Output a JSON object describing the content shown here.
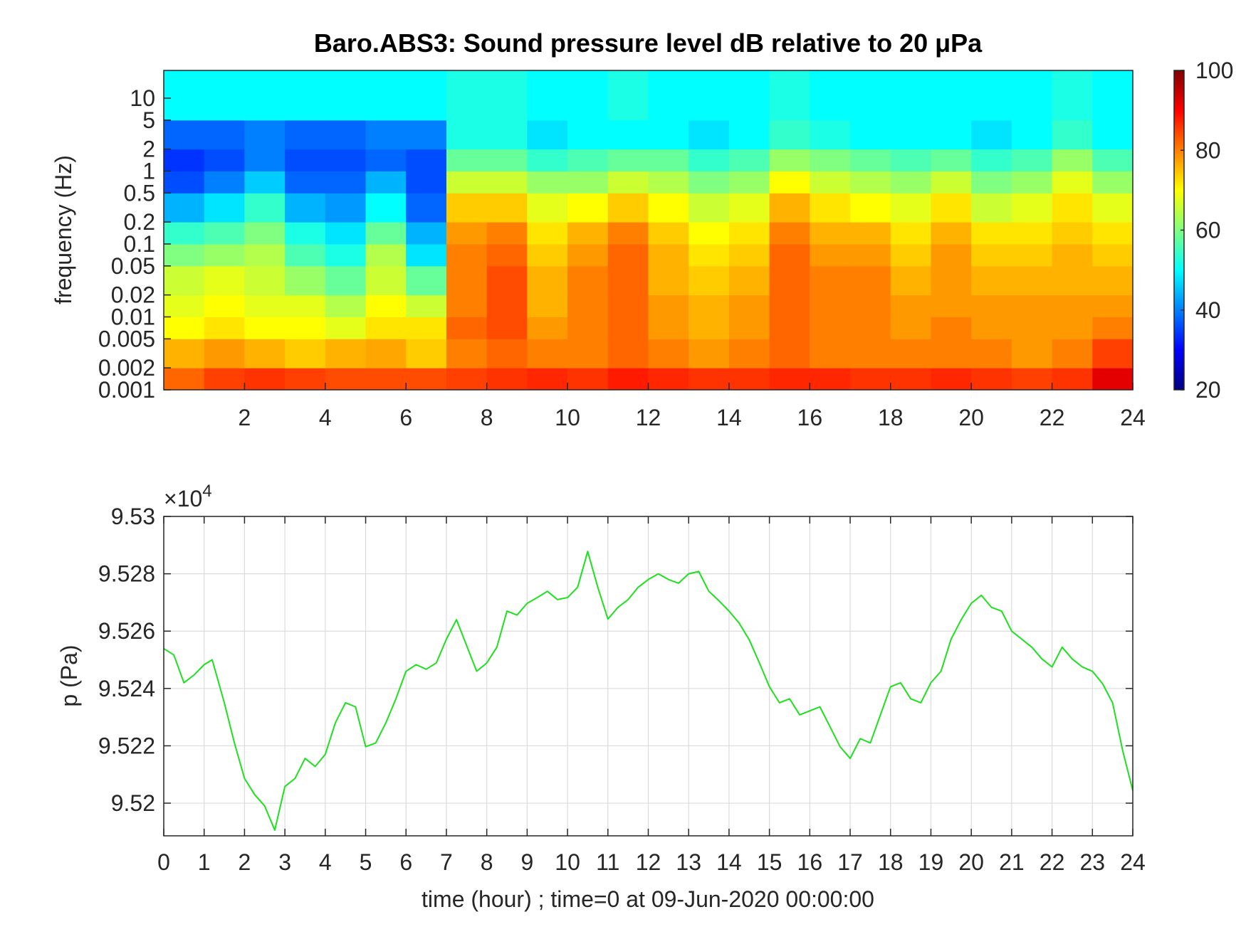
{
  "chart_data": [
    {
      "type": "heatmap",
      "title": "Baro.ABS3: Sound pressure level dB relative to 20 μPa",
      "ylabel": "frequency (Hz)",
      "yscale": "log",
      "xlim": [
        0,
        24
      ],
      "ylim": [
        0.001,
        24
      ],
      "xticks": [
        2,
        4,
        6,
        8,
        10,
        12,
        14,
        16,
        18,
        20,
        22,
        24
      ],
      "yticks": [
        0.001,
        0.002,
        0.005,
        0.01,
        0.02,
        0.05,
        0.1,
        0.2,
        0.5,
        1,
        2,
        5,
        10
      ],
      "x_bins": [
        0,
        1,
        2,
        3,
        4,
        5,
        6,
        7,
        8,
        9,
        10,
        11,
        12,
        13,
        14,
        15,
        16,
        17,
        18,
        19,
        20,
        21,
        22,
        23,
        24
      ],
      "y_bins": [
        0.001,
        0.002,
        0.005,
        0.01,
        0.02,
        0.05,
        0.1,
        0.2,
        0.5,
        1,
        2,
        5,
        24
      ],
      "z": [
        [
          82,
          85,
          86,
          85,
          84,
          84,
          84,
          85,
          86,
          87,
          86,
          88,
          87,
          86,
          86,
          87,
          87,
          86,
          86,
          87,
          86,
          85,
          86,
          92
        ],
        [
          76,
          78,
          76,
          74,
          76,
          77,
          74,
          80,
          82,
          80,
          80,
          82,
          80,
          78,
          80,
          82,
          80,
          80,
          80,
          80,
          80,
          78,
          80,
          85
        ],
        [
          70,
          72,
          70,
          70,
          68,
          72,
          72,
          82,
          84,
          78,
          80,
          82,
          78,
          76,
          78,
          82,
          80,
          80,
          78,
          80,
          78,
          78,
          78,
          80
        ],
        [
          68,
          70,
          68,
          68,
          64,
          70,
          66,
          80,
          84,
          76,
          80,
          82,
          78,
          76,
          78,
          82,
          80,
          80,
          78,
          78,
          78,
          78,
          78,
          78
        ],
        [
          66,
          68,
          66,
          62,
          58,
          66,
          58,
          80,
          84,
          76,
          80,
          82,
          76,
          74,
          76,
          82,
          80,
          80,
          76,
          78,
          76,
          76,
          76,
          76
        ],
        [
          60,
          62,
          64,
          56,
          52,
          64,
          48,
          80,
          82,
          74,
          78,
          82,
          76,
          72,
          74,
          82,
          78,
          78,
          74,
          78,
          74,
          74,
          76,
          74
        ],
        [
          54,
          56,
          60,
          52,
          48,
          58,
          44,
          78,
          80,
          72,
          76,
          80,
          74,
          70,
          72,
          80,
          76,
          76,
          72,
          76,
          72,
          72,
          74,
          72
        ],
        [
          44,
          48,
          54,
          44,
          42,
          50,
          38,
          74,
          74,
          68,
          70,
          74,
          70,
          66,
          68,
          76,
          72,
          70,
          68,
          72,
          66,
          68,
          72,
          68
        ],
        [
          36,
          40,
          46,
          38,
          38,
          44,
          36,
          66,
          66,
          62,
          62,
          66,
          64,
          60,
          62,
          70,
          66,
          64,
          62,
          66,
          60,
          62,
          68,
          62
        ],
        [
          34,
          36,
          40,
          36,
          36,
          38,
          36,
          58,
          58,
          54,
          56,
          58,
          58,
          54,
          56,
          62,
          60,
          58,
          56,
          58,
          54,
          56,
          62,
          56
        ],
        [
          38,
          38,
          40,
          38,
          38,
          40,
          40,
          52,
          52,
          48,
          50,
          50,
          50,
          48,
          50,
          54,
          52,
          50,
          50,
          50,
          48,
          50,
          54,
          50
        ],
        [
          50,
          50,
          50,
          50,
          50,
          50,
          50,
          52,
          52,
          50,
          50,
          52,
          50,
          50,
          50,
          52,
          50,
          50,
          50,
          50,
          50,
          50,
          52,
          50
        ]
      ],
      "colorbar": {
        "colormap": "jet",
        "clim": [
          20,
          100
        ],
        "ticks": [
          20,
          40,
          60,
          80,
          100
        ]
      }
    },
    {
      "type": "line",
      "xlabel": "time (hour) ; time=0 at 09-Jun-2020 00:00:00",
      "ylabel": "p (Pa)",
      "y_offset_label": "×10",
      "y_offset_exponent": "4",
      "grid": true,
      "xlim": [
        0,
        24
      ],
      "ylim": [
        95188.6,
        95300
      ],
      "xticks": [
        0,
        1,
        2,
        3,
        4,
        5,
        6,
        7,
        8,
        9,
        10,
        11,
        12,
        13,
        14,
        15,
        16,
        17,
        18,
        19,
        20,
        21,
        22,
        23,
        24
      ],
      "yticks": [
        {
          "value": 95200,
          "label": "9.52"
        },
        {
          "value": 95220,
          "label": "9.522"
        },
        {
          "value": 95240,
          "label": "9.524"
        },
        {
          "value": 95260,
          "label": "9.526"
        },
        {
          "value": 95280,
          "label": "9.528"
        },
        {
          "value": 95300,
          "label": "9.53"
        }
      ],
      "x": [
        0,
        0.25,
        0.5,
        0.75,
        1,
        1.2,
        1.5,
        1.75,
        2,
        2.25,
        2.5,
        2.75,
        3,
        3.25,
        3.5,
        3.75,
        4,
        4.25,
        4.5,
        4.75,
        5,
        5.25,
        5.5,
        5.75,
        6,
        6.25,
        6.5,
        6.75,
        7,
        7.25,
        7.5,
        7.75,
        8,
        8.25,
        8.5,
        8.75,
        9,
        9.25,
        9.5,
        9.75,
        10,
        10.25,
        10.5,
        10.75,
        11,
        11.25,
        11.5,
        11.75,
        12,
        12.25,
        12.5,
        12.75,
        13,
        13.25,
        13.5,
        13.75,
        14,
        14.25,
        14.5,
        14.75,
        15,
        15.25,
        15.5,
        15.75,
        16,
        16.25,
        16.5,
        16.75,
        17,
        17.25,
        17.5,
        17.75,
        18,
        18.25,
        18.5,
        18.75,
        19,
        19.25,
        19.5,
        19.75,
        20,
        20.25,
        20.5,
        20.75,
        21,
        21.25,
        21.5,
        21.75,
        22,
        22.25,
        22.5,
        22.75,
        23,
        23.25,
        23.5,
        23.75,
        24
      ],
      "series": [
        {
          "color": "#1ee01e",
          "values": [
            95253.9,
            95251.7,
            95242,
            95244.7,
            95248.3,
            95250,
            95235,
            95221,
            95208.6,
            95203,
            95199,
            95190.6,
            95205.8,
            95208.6,
            95215.6,
            95212.8,
            95217,
            95228,
            95235,
            95233.6,
            95219.7,
            95221,
            95228,
            95236.4,
            95246,
            95248.3,
            95246.7,
            95248.9,
            95257.2,
            95264,
            95255,
            95246,
            95248.9,
            95254.4,
            95267,
            95265.6,
            95269.7,
            95271.7,
            95273.9,
            95271,
            95271.7,
            95275.3,
            95287.8,
            95275.3,
            95264.2,
            95268.3,
            95271,
            95275.3,
            95278,
            95280,
            95278,
            95276.7,
            95280,
            95280.8,
            95273.9,
            95270.6,
            95267,
            95262.8,
            95257,
            95249,
            95240.6,
            95235,
            95236.4,
            95230.8,
            95232.2,
            95233.6,
            95226.7,
            95219.7,
            95215.6,
            95222.5,
            95221,
            95230.8,
            95240.6,
            95242,
            95236.4,
            95235,
            95242,
            95246,
            95257.2,
            95264,
            95269.7,
            95272.5,
            95268.3,
            95267,
            95260,
            95257.2,
            95254.4,
            95250.3,
            95247.5,
            95254.4,
            95250.3,
            95247.5,
            95246,
            95241.7,
            95235,
            95218.3,
            95204.4
          ]
        }
      ]
    }
  ]
}
